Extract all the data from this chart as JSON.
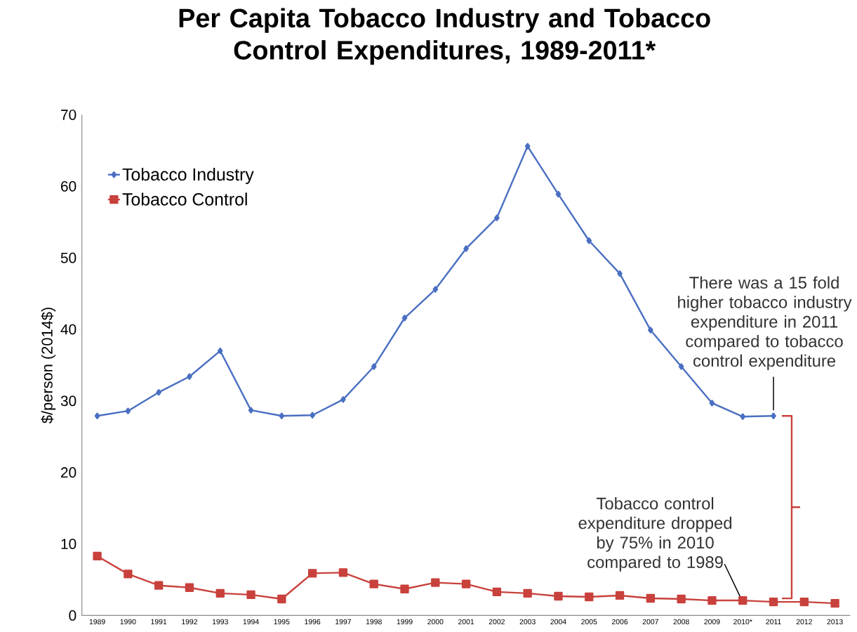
{
  "chart_data": {
    "type": "line",
    "title": "Per Capita Tobacco Industry and Tobacco Control Expenditures, 1989-2011*",
    "ylabel": "$/person (2014$)",
    "categories": [
      "1989",
      "1990",
      "1991",
      "1992",
      "1993",
      "1994",
      "1995",
      "1996",
      "1997",
      "1998",
      "1999",
      "2000",
      "2001",
      "2002",
      "2003",
      "2004",
      "2005",
      "2006",
      "2007",
      "2008",
      "2009",
      "2010*",
      "2011",
      "2012",
      "2013"
    ],
    "series": [
      {
        "name": "Tobacco Industry",
        "color": "#4a6fc2",
        "marker": "diamond",
        "values": [
          27.9,
          28.6,
          31.2,
          33.4,
          37.0,
          28.7,
          27.9,
          28.0,
          30.2,
          34.8,
          41.6,
          45.6,
          51.3,
          55.6,
          65.6,
          58.9,
          52.4,
          47.8,
          39.9,
          34.8,
          29.7,
          27.8,
          27.9,
          null,
          null
        ]
      },
      {
        "name": "Tobacco Control",
        "color": "#c9413c",
        "marker": "square",
        "values": [
          8.3,
          5.8,
          4.2,
          3.9,
          3.1,
          2.9,
          2.3,
          5.9,
          6.0,
          4.4,
          3.7,
          4.6,
          4.4,
          3.3,
          3.1,
          2.7,
          2.6,
          2.8,
          2.4,
          2.3,
          2.1,
          2.1,
          1.9,
          1.9,
          1.7
        ]
      }
    ],
    "ylim": [
      0,
      70
    ],
    "yticks": [
      0,
      10,
      20,
      30,
      40,
      50,
      60,
      70
    ],
    "grid": false,
    "legend": "top left",
    "annotations": [
      {
        "text": "There was a 15 fold higher tobacco industry expenditure in 2011 compared to tobacco control expenditure",
        "x": "2011",
        "y": 27.9
      },
      {
        "text": "Tobacco control expenditure dropped by 75% in 2010 compared to 1989",
        "x": "2010*",
        "y": 2.1
      }
    ]
  }
}
